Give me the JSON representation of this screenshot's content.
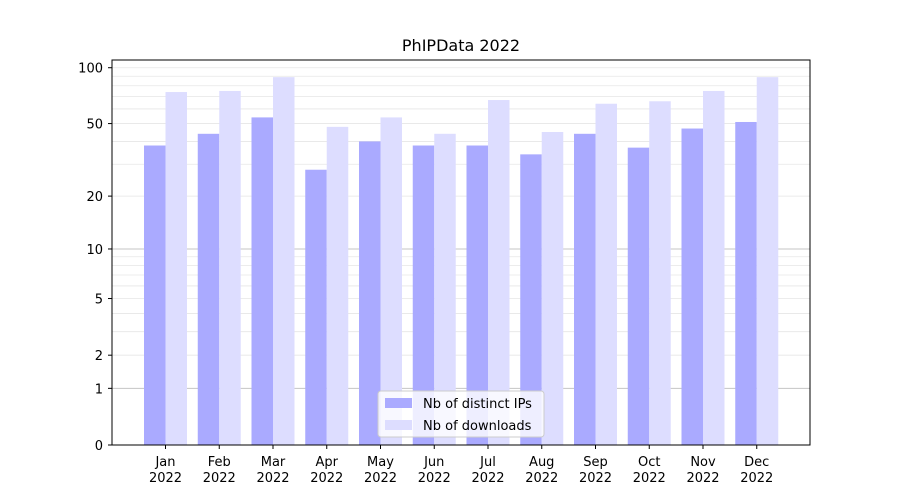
{
  "chart_data": {
    "type": "bar",
    "title": "PhIPData 2022",
    "xlabel": "",
    "ylabel": "",
    "categories": [
      "Jan\n2022",
      "Feb\n2022",
      "Mar\n2022",
      "Apr\n2022",
      "May\n2022",
      "Jun\n2022",
      "Jul\n2022",
      "Aug\n2022",
      "Sep\n2022",
      "Oct\n2022",
      "Nov\n2022",
      "Dec\n2022"
    ],
    "yscale": "log1p",
    "ylim": [
      0,
      110
    ],
    "yticks": [
      0,
      1,
      2,
      5,
      10,
      20,
      50,
      100
    ],
    "ytick_labels": [
      "0",
      "1",
      "2",
      "5",
      "10",
      "20",
      "50",
      "100"
    ],
    "grid": true,
    "legend_position": "bottom-center",
    "series": [
      {
        "name": "Nb of distinct IPs",
        "color": "#aaaaff",
        "values": [
          38,
          44,
          54,
          28,
          40,
          38,
          38,
          34,
          44,
          37,
          47,
          51
        ]
      },
      {
        "name": "Nb of downloads",
        "color": "#ddddff",
        "values": [
          74,
          75,
          89,
          48,
          54,
          44,
          67,
          45,
          64,
          66,
          75,
          89
        ]
      }
    ]
  }
}
